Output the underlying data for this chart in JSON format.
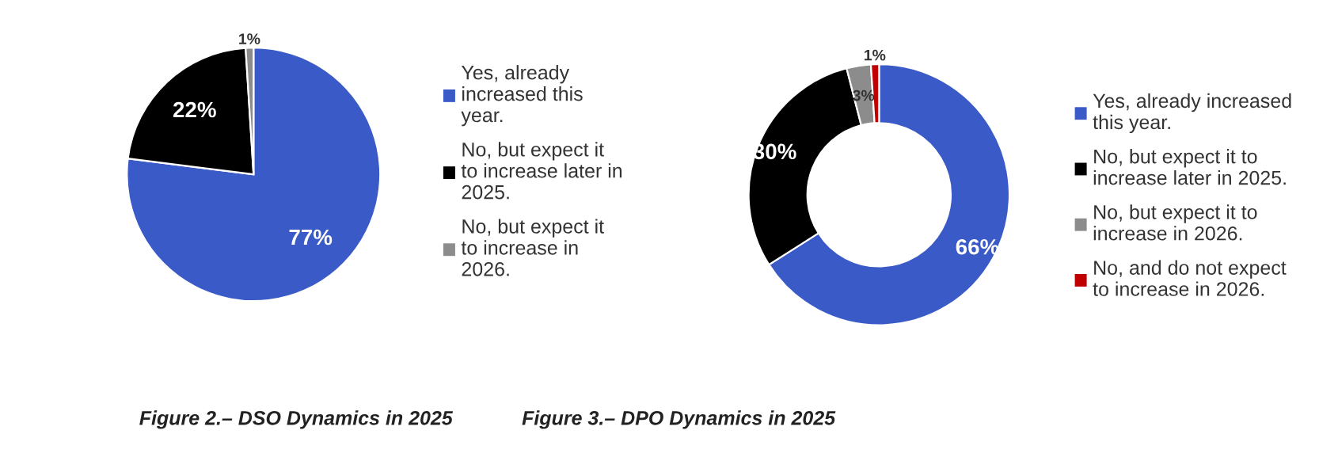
{
  "chart_data": [
    {
      "type": "pie",
      "categories": [
        "Yes, already\nincreased this\nyear.",
        "No, but expect it\nto increase later in\n2025.",
        "No, but expect it\nto increase in\n2026."
      ],
      "values": [
        77,
        22,
        1
      ],
      "colors": [
        "#3a5bc7",
        "#000000",
        "#8c8c8c"
      ],
      "value_labels": [
        "77%",
        "22%",
        "1%"
      ],
      "legend": "right",
      "annotations": [
        "Figure 2.– DSO Dynamics in 2025"
      ]
    },
    {
      "type": "donut",
      "categories": [
        "Yes, already increased\nthis year.",
        "No, but expect it to\nincrease later in 2025.",
        "No, but expect it to\nincrease in 2026.",
        "No, and do not expect\nto increase in 2026."
      ],
      "values": [
        66,
        30,
        3,
        1
      ],
      "colors": [
        "#3a5bc7",
        "#000000",
        "#8c8c8c",
        "#c00000"
      ],
      "value_labels": [
        "66%",
        "30%",
        "3%",
        "1%"
      ],
      "legend": "right",
      "annotations": [
        "Figure 3.– DPO Dynamics in 2025"
      ]
    }
  ]
}
